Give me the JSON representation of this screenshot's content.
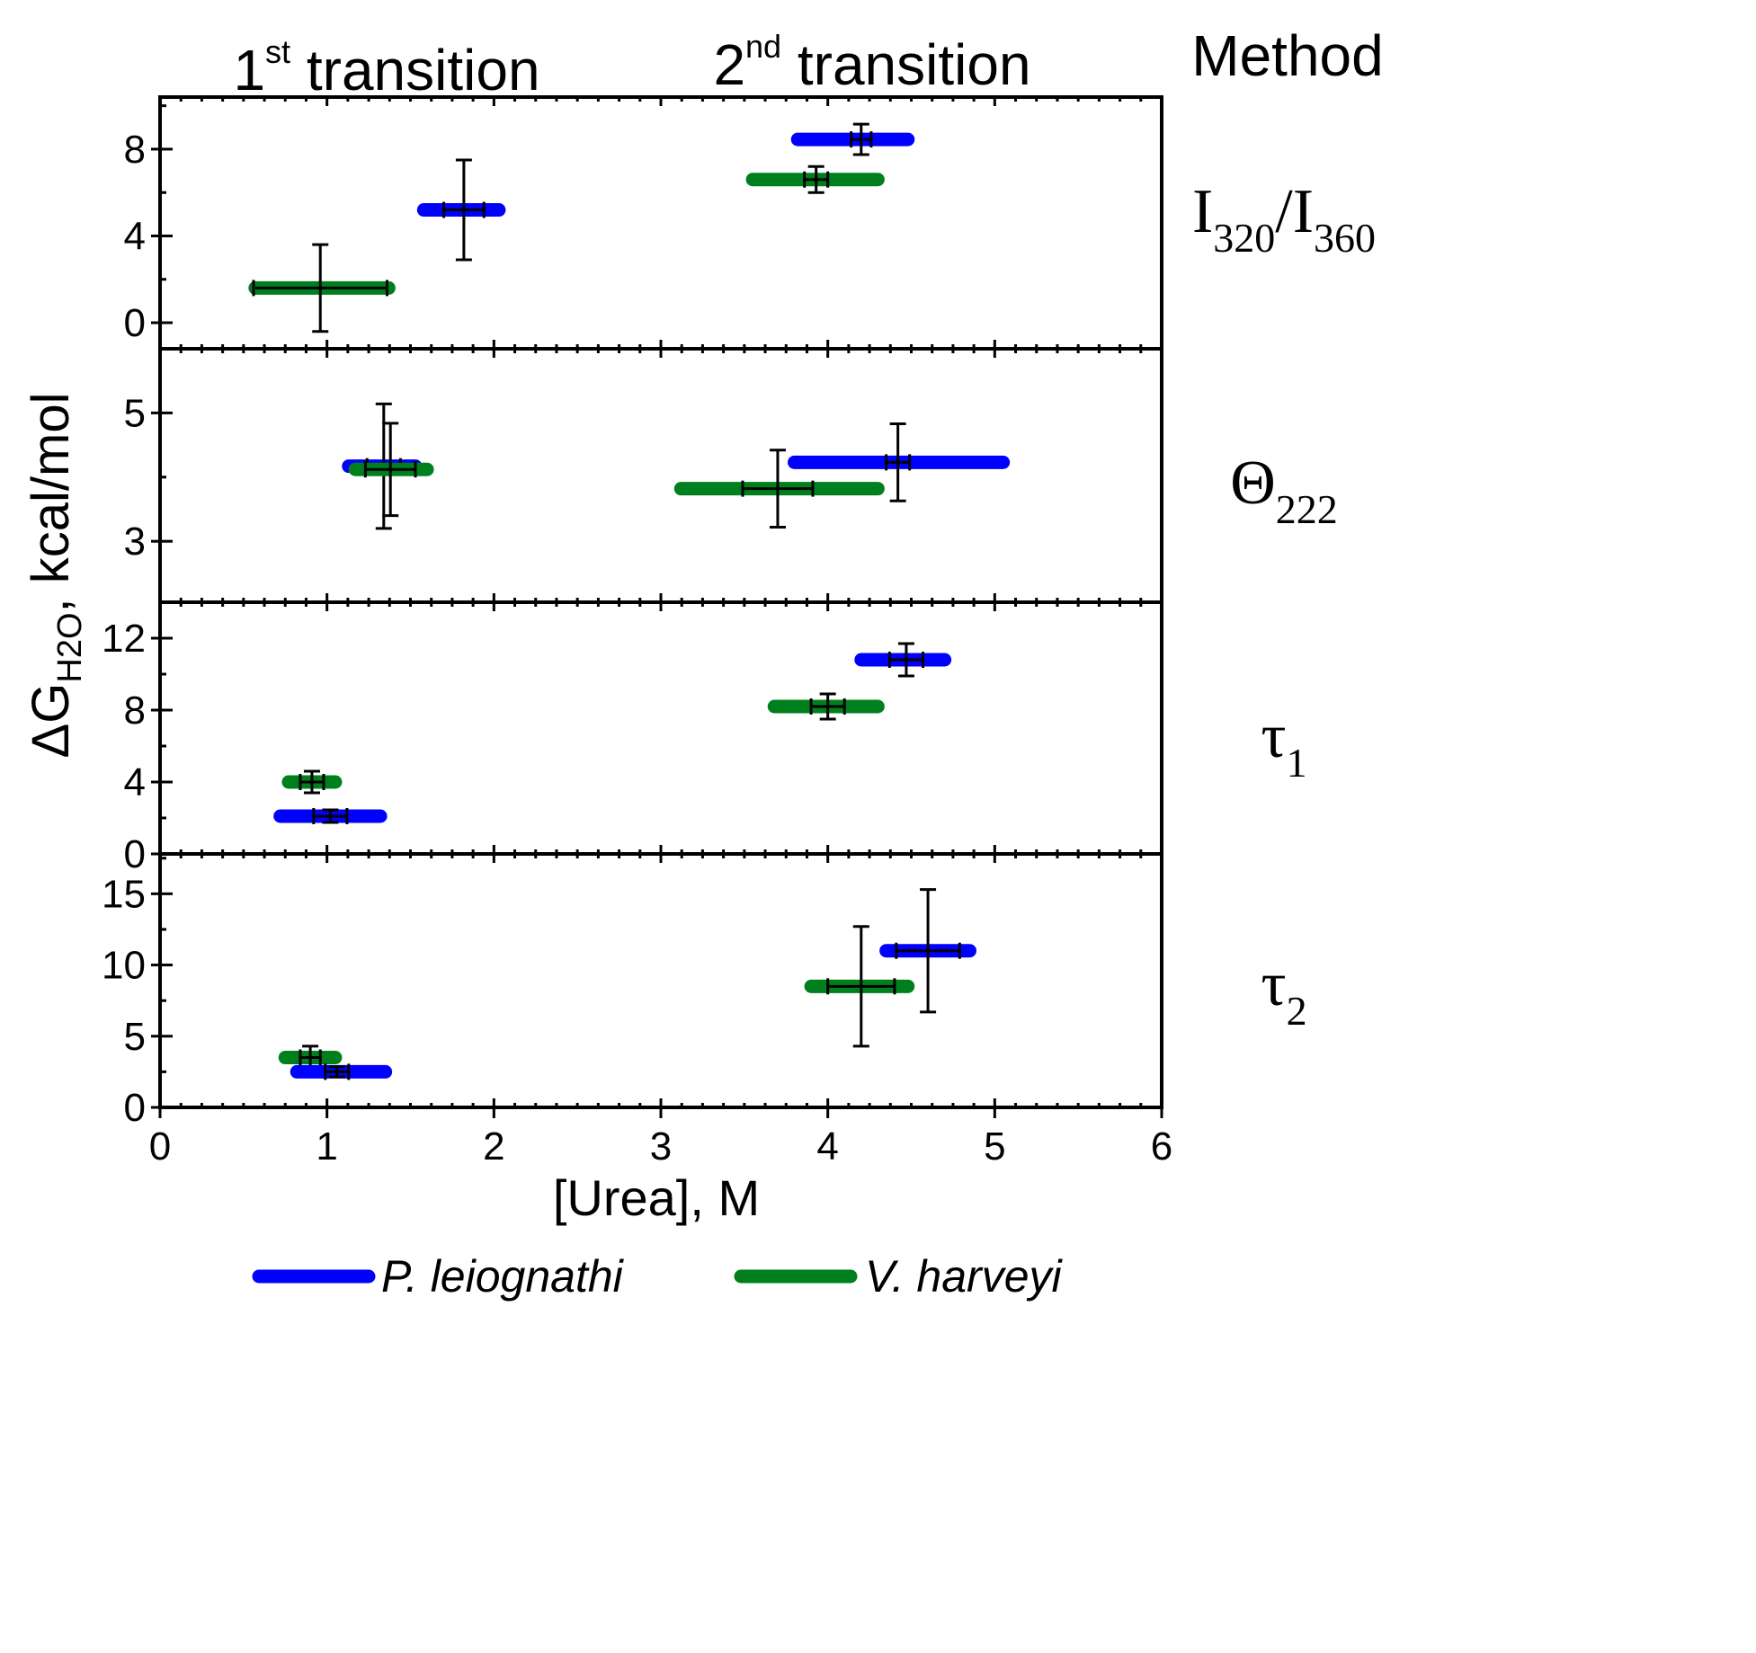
{
  "chart_data": {
    "type": "scatter",
    "headers": {
      "first_transition": {
        "base": "1",
        "sup": "st",
        "rest": " transition"
      },
      "second_transition": {
        "base": "2",
        "sup": "nd",
        "rest": " transition"
      },
      "method": "Method"
    },
    "xlabel": "[Urea], M",
    "ylabel": {
      "prefix": "ΔG",
      "sub": "H2O",
      "suffix": ", kcal/mol"
    },
    "xlim": [
      0,
      6
    ],
    "xticks": [
      0,
      1,
      2,
      3,
      4,
      5,
      6
    ],
    "xtick_labels": [
      "0",
      "1",
      "2",
      "3",
      "4",
      "5",
      "6"
    ],
    "legend": [
      {
        "name": "P. leiognathi",
        "color": "#0000ff"
      },
      {
        "name": "V. harveyi",
        "color": "#00801c"
      }
    ],
    "colors": {
      "P. leiognathi": "#0000ff",
      "V. harveyi": "#00801c",
      "error": "#000000"
    },
    "panels": [
      {
        "method": {
          "main": "I",
          "sub": "320",
          "sep": "/I",
          "sub2": "360"
        },
        "ylim": [
          -1.2,
          10.4
        ],
        "yticks": [
          0,
          4,
          8
        ],
        "ytick_labels": [
          "0",
          "4",
          "8"
        ],
        "points": [
          {
            "series": "V. harveyi",
            "x": 0.96,
            "y": 1.6,
            "xerr": 0.4,
            "yerr": 2.0,
            "range": [
              0.57,
              1.37
            ]
          },
          {
            "series": "P. leiognathi",
            "x": 1.82,
            "y": 5.2,
            "xerr": 0.12,
            "yerr": 2.3,
            "range": [
              1.58,
              2.03
            ]
          },
          {
            "series": "P. leiognathi",
            "x": 4.2,
            "y": 8.45,
            "xerr": 0.06,
            "yerr": 0.7,
            "range": [
              3.82,
              4.48
            ]
          },
          {
            "series": "V. harveyi",
            "x": 3.93,
            "y": 6.6,
            "xerr": 0.07,
            "yerr": 0.6,
            "range": [
              3.55,
              4.3
            ]
          }
        ]
      },
      {
        "method": {
          "main": "Θ",
          "sub": "222"
        },
        "ylim": [
          2.05,
          6.0
        ],
        "yticks": [
          3,
          5
        ],
        "ytick_labels": [
          "3",
          "5"
        ],
        "points": [
          {
            "series": "P. leiognathi",
            "x": 1.34,
            "y": 4.17,
            "xerr": 0.1,
            "yerr": 0.97,
            "range": [
              1.13,
              1.53
            ]
          },
          {
            "series": "V. harveyi",
            "x": 1.38,
            "y": 4.12,
            "xerr": 0.15,
            "yerr": 0.72,
            "range": [
              1.17,
              1.6
            ]
          },
          {
            "series": "P. leiognathi",
            "x": 4.42,
            "y": 4.23,
            "xerr": 0.07,
            "yerr": 0.6,
            "range": [
              3.8,
              5.05
            ]
          },
          {
            "series": "V. harveyi",
            "x": 3.7,
            "y": 3.82,
            "xerr": 0.21,
            "yerr": 0.6,
            "range": [
              3.12,
              4.3
            ]
          }
        ]
      },
      {
        "method": {
          "main": "τ",
          "sub": "1"
        },
        "ylim": [
          0,
          14.0
        ],
        "yticks": [
          0,
          4,
          8,
          12
        ],
        "ytick_labels": [
          "0",
          "4",
          "8",
          "12"
        ],
        "points": [
          {
            "series": "V. harveyi",
            "x": 0.91,
            "y": 4.0,
            "xerr": 0.07,
            "yerr": 0.6,
            "range": [
              0.77,
              1.05
            ]
          },
          {
            "series": "P. leiognathi",
            "x": 1.02,
            "y": 2.1,
            "xerr": 0.1,
            "yerr": 0.35,
            "range": [
              0.72,
              1.32
            ]
          },
          {
            "series": "P. leiognathi",
            "x": 4.47,
            "y": 10.8,
            "xerr": 0.1,
            "yerr": 0.9,
            "range": [
              4.2,
              4.7
            ]
          },
          {
            "series": "V. harveyi",
            "x": 4.0,
            "y": 8.2,
            "xerr": 0.1,
            "yerr": 0.7,
            "range": [
              3.68,
              4.3
            ]
          }
        ]
      },
      {
        "method": {
          "main": "τ",
          "sub": "2"
        },
        "ylim": [
          0,
          17.8
        ],
        "yticks": [
          0,
          5,
          10,
          15
        ],
        "ytick_labels": [
          "0",
          "5",
          "10",
          "15"
        ],
        "points": [
          {
            "series": "V. harveyi",
            "x": 0.9,
            "y": 3.5,
            "xerr": 0.06,
            "yerr": 0.8,
            "range": [
              0.75,
              1.05
            ]
          },
          {
            "series": "P. leiognathi",
            "x": 1.06,
            "y": 2.5,
            "xerr": 0.07,
            "yerr": 0.35,
            "range": [
              0.82,
              1.35
            ]
          },
          {
            "series": "P. leiognathi",
            "x": 4.6,
            "y": 11.0,
            "xerr": 0.19,
            "yerr": 4.3,
            "range": [
              4.35,
              4.85
            ]
          },
          {
            "series": "V. harveyi",
            "x": 4.2,
            "y": 8.5,
            "xerr": 0.2,
            "yerr": 4.2,
            "range": [
              3.9,
              4.48
            ]
          }
        ]
      }
    ]
  }
}
